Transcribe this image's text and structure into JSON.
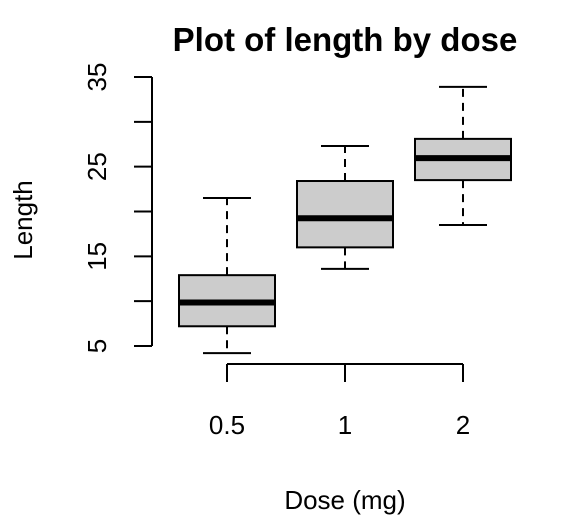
{
  "chart_data": {
    "type": "box",
    "title": "Plot of length by dose",
    "xlabel": "Dose (mg)",
    "ylabel": "Length",
    "categories": [
      "0.5",
      "1",
      "2"
    ],
    "y_ticks": [
      "5",
      "15",
      "25",
      "35"
    ],
    "y_minor_ticks": [
      10,
      20,
      30
    ],
    "ylim": [
      5,
      35
    ],
    "box_fill": "#cccccc",
    "boxes": [
      {
        "category": "0.5",
        "whisker_low": 4.2,
        "q1": 7.2,
        "median": 9.85,
        "q3": 12.9,
        "whisker_high": 21.5
      },
      {
        "category": "1",
        "whisker_low": 13.6,
        "q1": 16.0,
        "median": 19.25,
        "q3": 23.4,
        "whisker_high": 27.3
      },
      {
        "category": "2",
        "whisker_low": 18.5,
        "q1": 23.5,
        "median": 25.95,
        "q3": 28.1,
        "whisker_high": 33.9
      }
    ]
  }
}
